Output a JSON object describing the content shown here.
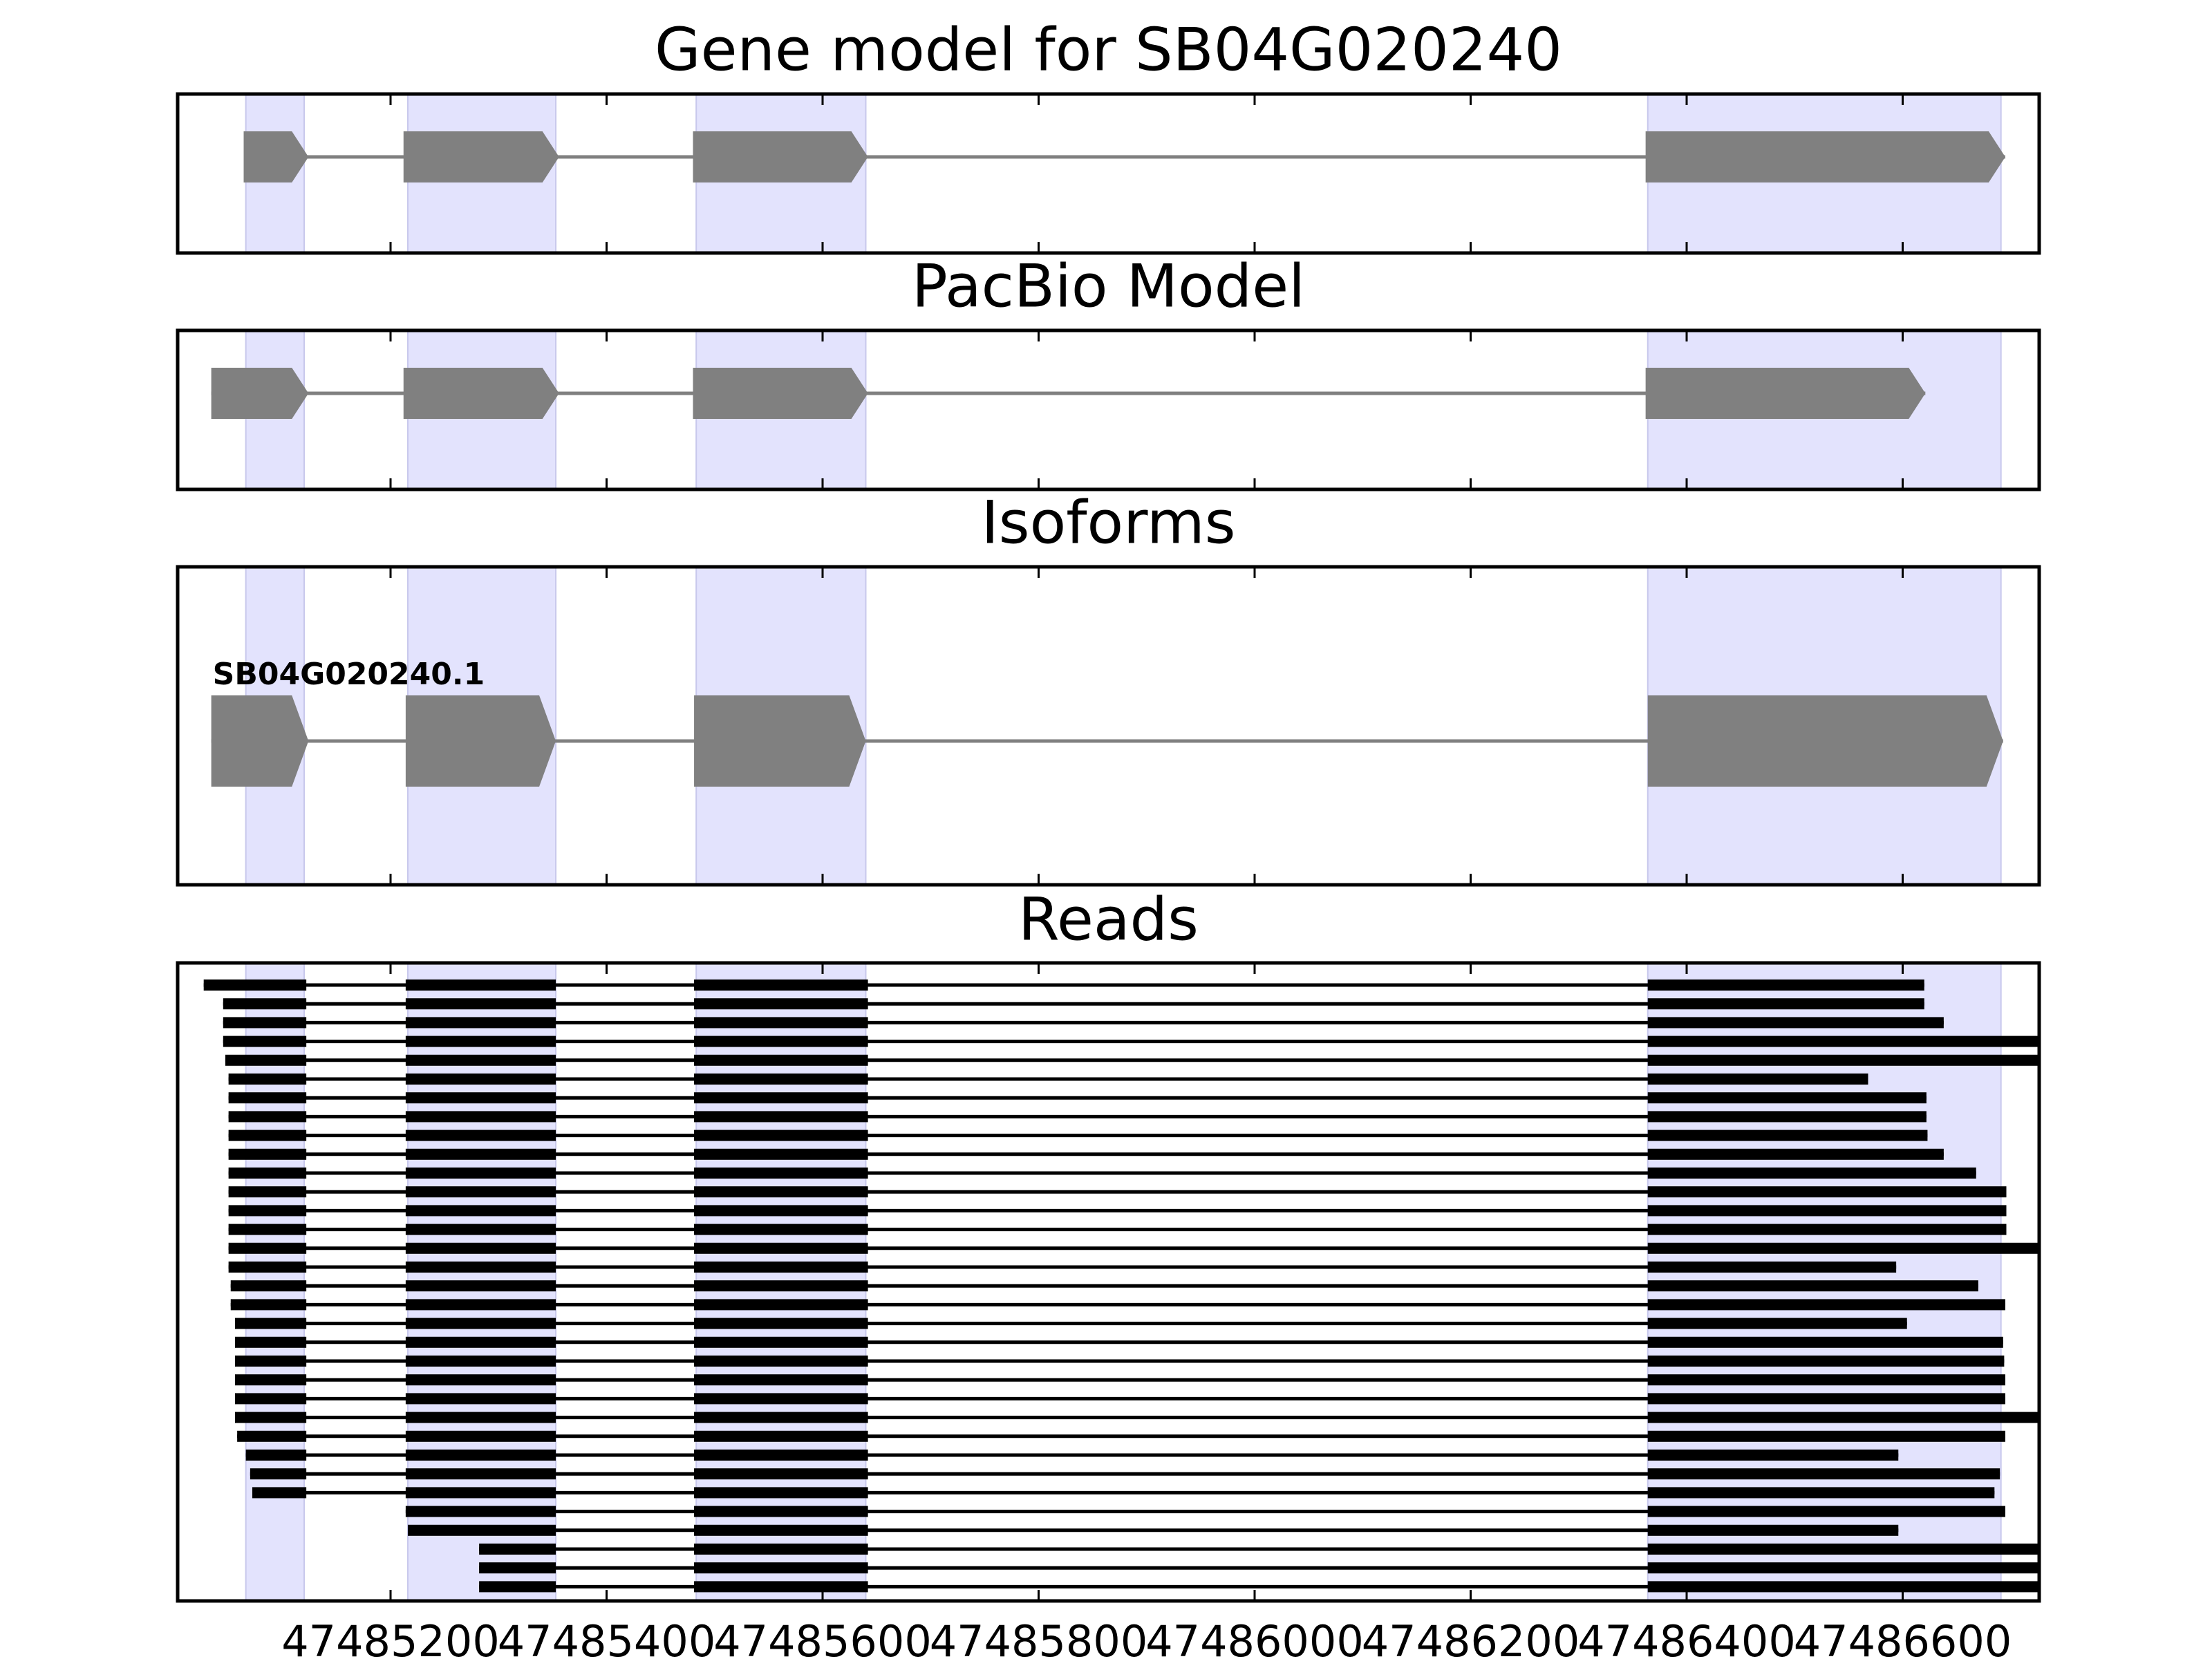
{
  "chart_data": {
    "type": "gene-structure",
    "x_ticks": [
      47485200,
      47485400,
      47485600,
      47485800,
      47486000,
      47486200,
      47486400,
      47486600
    ],
    "x_tick_labels": [
      "47485200",
      "47485400",
      "47485600",
      "47485800",
      "47486000",
      "47486200",
      "47486400",
      "47486600"
    ],
    "colors": {
      "feature": "#808080",
      "shade": "#e3e3fd",
      "read": "#000000",
      "axis": "#000000"
    },
    "shaded_exon_regions": [
      [
        47485066,
        47485120
      ],
      [
        47485216,
        47485353
      ],
      [
        47485483,
        47485640
      ],
      [
        47486364,
        47486691
      ]
    ],
    "panels": [
      {
        "title": "Gene model for SB04G020240",
        "exons": [
          [
            47485064,
            47485124
          ],
          [
            47485212,
            47485356
          ],
          [
            47485480,
            47485642
          ],
          [
            47486362,
            47486695
          ]
        ],
        "direction": "+"
      },
      {
        "title": "PacBio Model",
        "exons": [
          [
            47485034,
            47485124
          ],
          [
            47485212,
            47485356
          ],
          [
            47485480,
            47485642
          ],
          [
            47486362,
            47486621
          ]
        ],
        "direction": "+"
      },
      {
        "title": "Isoforms",
        "isoforms": [
          {
            "label": "SB04G020240.1",
            "exons": [
              [
                47485034,
                47485124
              ],
              [
                47485214,
                47485353
              ],
              [
                47485481,
                47485640
              ],
              [
                47486364,
                47486693
              ]
            ]
          }
        ]
      },
      {
        "title": "Reads",
        "reads": [
          {
            "exons": [
              [
                47485027,
                47485122
              ],
              [
                47485214,
                47485353
              ],
              [
                47485481,
                47485642
              ],
              [
                47486364,
                47486620
              ]
            ]
          },
          {
            "exons": [
              [
                47485045,
                47485122
              ],
              [
                47485214,
                47485353
              ],
              [
                47485481,
                47485642
              ],
              [
                47486364,
                47486620
              ]
            ]
          },
          {
            "exons": [
              [
                47485045,
                47485122
              ],
              [
                47485214,
                47485353
              ],
              [
                47485481,
                47485642
              ],
              [
                47486364,
                47486638
              ]
            ]
          },
          {
            "exons": [
              [
                47485045,
                47485122
              ],
              [
                47485214,
                47485353
              ],
              [
                47485481,
                47485642
              ],
              [
                47486364,
                47486732
              ]
            ]
          },
          {
            "exons": [
              [
                47485047,
                47485122
              ],
              [
                47485214,
                47485353
              ],
              [
                47485481,
                47485642
              ],
              [
                47486364,
                47486732
              ]
            ]
          },
          {
            "exons": [
              [
                47485050,
                47485122
              ],
              [
                47485214,
                47485353
              ],
              [
                47485481,
                47485642
              ],
              [
                47486364,
                47486568
              ]
            ]
          },
          {
            "exons": [
              [
                47485050,
                47485122
              ],
              [
                47485214,
                47485353
              ],
              [
                47485481,
                47485642
              ],
              [
                47486364,
                47486622
              ]
            ]
          },
          {
            "exons": [
              [
                47485050,
                47485122
              ],
              [
                47485214,
                47485353
              ],
              [
                47485481,
                47485642
              ],
              [
                47486364,
                47486622
              ]
            ]
          },
          {
            "exons": [
              [
                47485050,
                47485122
              ],
              [
                47485214,
                47485353
              ],
              [
                47485481,
                47485642
              ],
              [
                47486364,
                47486623
              ]
            ]
          },
          {
            "exons": [
              [
                47485050,
                47485122
              ],
              [
                47485214,
                47485353
              ],
              [
                47485481,
                47485642
              ],
              [
                47486364,
                47486638
              ]
            ]
          },
          {
            "exons": [
              [
                47485050,
                47485122
              ],
              [
                47485214,
                47485353
              ],
              [
                47485481,
                47485642
              ],
              [
                47486364,
                47486668
              ]
            ]
          },
          {
            "exons": [
              [
                47485050,
                47485122
              ],
              [
                47485214,
                47485353
              ],
              [
                47485481,
                47485642
              ],
              [
                47486364,
                47486696
              ]
            ]
          },
          {
            "exons": [
              [
                47485050,
                47485122
              ],
              [
                47485214,
                47485353
              ],
              [
                47485481,
                47485642
              ],
              [
                47486364,
                47486696
              ]
            ]
          },
          {
            "exons": [
              [
                47485050,
                47485122
              ],
              [
                47485214,
                47485353
              ],
              [
                47485481,
                47485642
              ],
              [
                47486364,
                47486696
              ]
            ]
          },
          {
            "exons": [
              [
                47485050,
                47485122
              ],
              [
                47485214,
                47485353
              ],
              [
                47485481,
                47485642
              ],
              [
                47486364,
                47486732
              ]
            ]
          },
          {
            "exons": [
              [
                47485050,
                47485122
              ],
              [
                47485214,
                47485353
              ],
              [
                47485481,
                47485642
              ],
              [
                47486364,
                47486594
              ]
            ]
          },
          {
            "exons": [
              [
                47485052,
                47485122
              ],
              [
                47485214,
                47485353
              ],
              [
                47485481,
                47485642
              ],
              [
                47486364,
                47486670
              ]
            ]
          },
          {
            "exons": [
              [
                47485052,
                47485122
              ],
              [
                47485214,
                47485353
              ],
              [
                47485481,
                47485642
              ],
              [
                47486364,
                47486695
              ]
            ]
          },
          {
            "exons": [
              [
                47485056,
                47485122
              ],
              [
                47485214,
                47485353
              ],
              [
                47485481,
                47485642
              ],
              [
                47486364,
                47486604
              ]
            ]
          },
          {
            "exons": [
              [
                47485056,
                47485122
              ],
              [
                47485214,
                47485353
              ],
              [
                47485481,
                47485642
              ],
              [
                47486364,
                47486693
              ]
            ]
          },
          {
            "exons": [
              [
                47485056,
                47485122
              ],
              [
                47485214,
                47485353
              ],
              [
                47485481,
                47485642
              ],
              [
                47486364,
                47486694
              ]
            ]
          },
          {
            "exons": [
              [
                47485056,
                47485122
              ],
              [
                47485214,
                47485353
              ],
              [
                47485481,
                47485642
              ],
              [
                47486364,
                47486695
              ]
            ]
          },
          {
            "exons": [
              [
                47485056,
                47485122
              ],
              [
                47485214,
                47485353
              ],
              [
                47485481,
                47485642
              ],
              [
                47486364,
                47486695
              ]
            ]
          },
          {
            "exons": [
              [
                47485056,
                47485122
              ],
              [
                47485214,
                47485353
              ],
              [
                47485481,
                47485642
              ],
              [
                47486364,
                47486732
              ]
            ]
          },
          {
            "exons": [
              [
                47485058,
                47485122
              ],
              [
                47485214,
                47485353
              ],
              [
                47485481,
                47485642
              ],
              [
                47486364,
                47486695
              ]
            ]
          },
          {
            "exons": [
              [
                47485066,
                47485122
              ],
              [
                47485214,
                47485353
              ],
              [
                47485481,
                47485642
              ],
              [
                47486364,
                47486596
              ]
            ]
          },
          {
            "exons": [
              [
                47485070,
                47485122
              ],
              [
                47485214,
                47485353
              ],
              [
                47485481,
                47485642
              ],
              [
                47486364,
                47486690
              ]
            ]
          },
          {
            "exons": [
              [
                47485072,
                47485122
              ],
              [
                47485214,
                47485353
              ],
              [
                47485481,
                47485642
              ],
              [
                47486364,
                47486685
              ]
            ]
          },
          {
            "exons": [
              [
                47485214,
                47485353
              ],
              [
                47485481,
                47485642
              ],
              [
                47486364,
                47486695
              ]
            ]
          },
          {
            "exons": [
              [
                47485216,
                47485353
              ],
              [
                47485481,
                47485642
              ],
              [
                47486364,
                47486596
              ]
            ]
          },
          {
            "exons": [
              [
                47485282,
                47485353
              ],
              [
                47485481,
                47485642
              ],
              [
                47486364,
                47486732
              ]
            ]
          },
          {
            "exons": [
              [
                47485282,
                47485353
              ],
              [
                47485481,
                47485642
              ],
              [
                47486364,
                47486732
              ]
            ]
          },
          {
            "exons": [
              [
                47485282,
                47485353
              ],
              [
                47485481,
                47485642
              ],
              [
                47486364,
                47486732
              ]
            ]
          }
        ]
      }
    ]
  }
}
